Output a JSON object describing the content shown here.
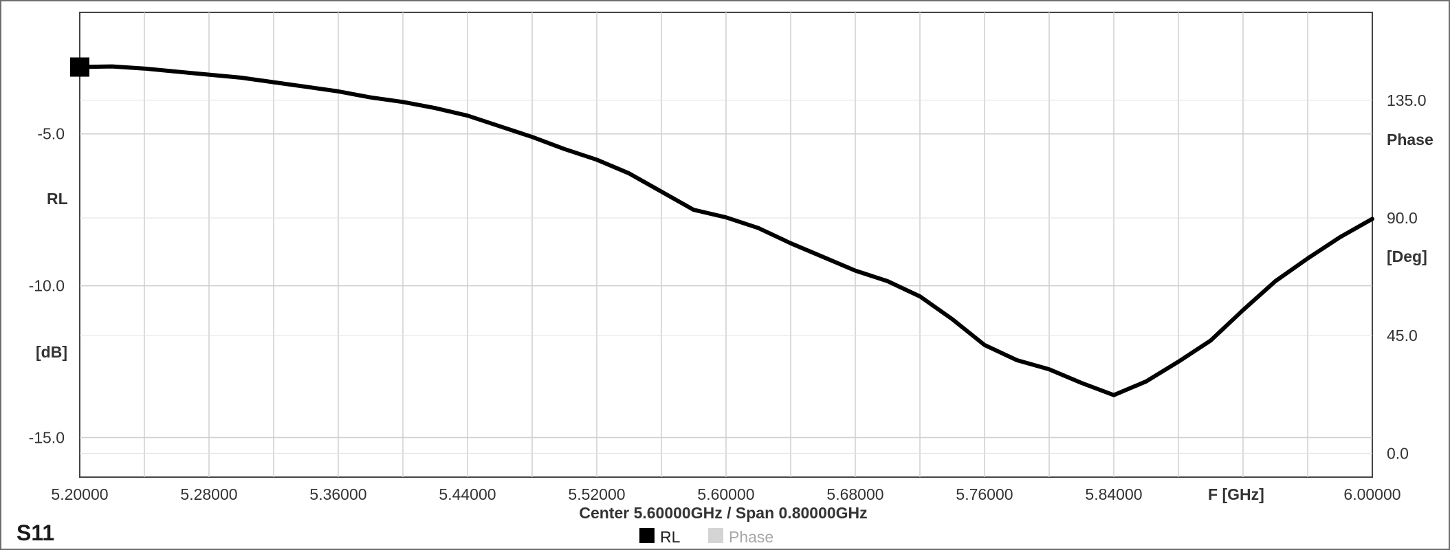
{
  "chart_data": {
    "type": "line",
    "title": "S11",
    "xlabel": "F [GHz]",
    "ylabel_left": [
      "RL",
      "[dB]"
    ],
    "ylabel_right": [
      "Phase",
      "[Deg]"
    ],
    "center_span_text": "Center 5.60000GHz / Span 0.80000GHz",
    "xlim": [
      5.2,
      6.0
    ],
    "ylim": [
      -16.3,
      -1.0
    ],
    "ylim_right": [
      -9.1,
      168.6
    ],
    "x_ticks": [
      "5.20000",
      "5.28000",
      "5.36000",
      "5.44000",
      "5.52000",
      "5.60000",
      "5.68000",
      "5.76000",
      "5.84000",
      "6.00000"
    ],
    "x_tick_values": [
      5.2,
      5.28,
      5.36,
      5.44,
      5.52,
      5.6,
      5.68,
      5.76,
      5.84,
      6.0
    ],
    "y_ticks_left": [
      "-5.0",
      "-10.0",
      "-15.0"
    ],
    "y_tick_values_left": [
      -5.0,
      -10.0,
      -15.0
    ],
    "y_ticks_right": [
      "135.0",
      "90.0",
      "45.0",
      "0.0"
    ],
    "y_tick_values_right": [
      135.0,
      90.0,
      45.0,
      0.0
    ],
    "grid": true,
    "legend_position": "bottom-center",
    "series": [
      {
        "name": "RL",
        "color": "#000000",
        "x": [
          5.2,
          5.22,
          5.24,
          5.26,
          5.28,
          5.3,
          5.32,
          5.34,
          5.36,
          5.38,
          5.4,
          5.42,
          5.44,
          5.46,
          5.48,
          5.5,
          5.52,
          5.54,
          5.56,
          5.58,
          5.6,
          5.62,
          5.64,
          5.66,
          5.68,
          5.7,
          5.72,
          5.74,
          5.76,
          5.78,
          5.8,
          5.82,
          5.84,
          5.86,
          5.88,
          5.9,
          5.92,
          5.94,
          5.96,
          5.98,
          6.0
        ],
        "values": [
          -2.8,
          -2.78,
          -2.85,
          -2.95,
          -3.05,
          -3.15,
          -3.3,
          -3.45,
          -3.6,
          -3.8,
          -3.95,
          -4.15,
          -4.4,
          -4.75,
          -5.1,
          -5.5,
          -5.85,
          -6.3,
          -6.9,
          -7.5,
          -7.75,
          -8.1,
          -8.6,
          -9.05,
          -9.5,
          -9.85,
          -10.35,
          -11.1,
          -11.95,
          -12.45,
          -12.75,
          -13.2,
          -13.6,
          -13.15,
          -12.5,
          -11.8,
          -10.8,
          -9.85,
          -9.1,
          -8.4,
          -7.8
        ]
      }
    ],
    "legend_items": [
      {
        "label": "RL",
        "color": "#000000"
      },
      {
        "label": "Phase",
        "color": "#d4d4d4"
      }
    ],
    "marker": {
      "series": "RL",
      "x": 5.2,
      "y": -2.8,
      "shape": "square"
    }
  }
}
